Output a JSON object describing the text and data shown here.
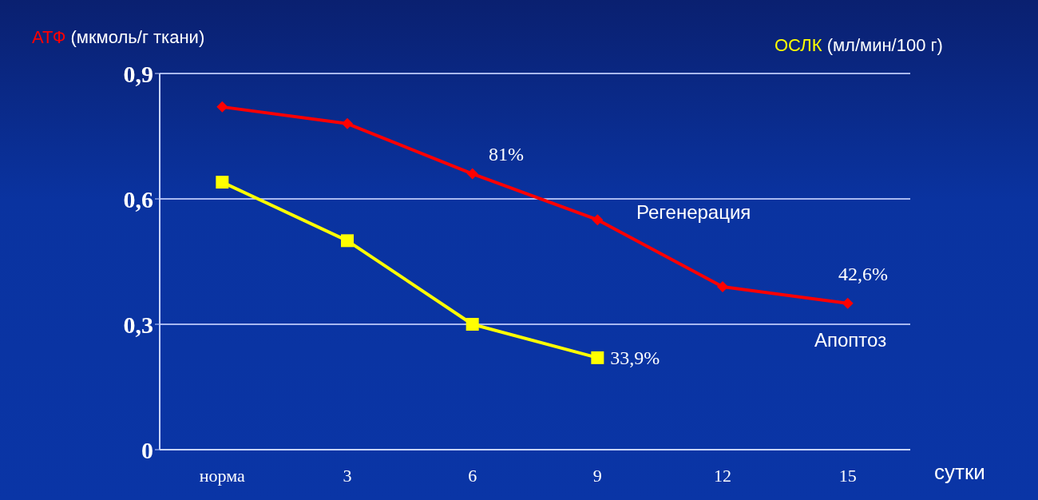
{
  "chart_data": {
    "type": "line",
    "ylabel": "(мкмоль/г ткани)",
    "y2label": "(мл/мин/100 г)",
    "xlabel": "сутки",
    "categories": [
      "норма",
      "3",
      "6",
      "9",
      "12",
      "15"
    ],
    "series": [
      {
        "name": "АТФ",
        "color": "#ff0000",
        "marker": "diamond",
        "values": [
          0.82,
          0.78,
          0.66,
          0.55,
          0.39,
          0.35
        ]
      },
      {
        "name": "ОСЛК",
        "color": "#ffff00",
        "marker": "square",
        "values": [
          0.64,
          0.5,
          0.3,
          0.22,
          null,
          null
        ]
      }
    ],
    "ylim": [
      0,
      0.9
    ],
    "yticks": [
      0,
      {
        "value": 0.3,
        "label": "0,3"
      },
      {
        "value": 0.6,
        "label": "0,6"
      },
      {
        "value": 0.9,
        "label": "0,9"
      }
    ],
    "grid": "y",
    "legend": false,
    "annotations": [
      "81%",
      "Регенерация",
      "42,6%",
      "Апоптоз",
      {
        "text": "33,9%",
        "x": "9",
        "y": 0.22
      }
    ]
  }
}
